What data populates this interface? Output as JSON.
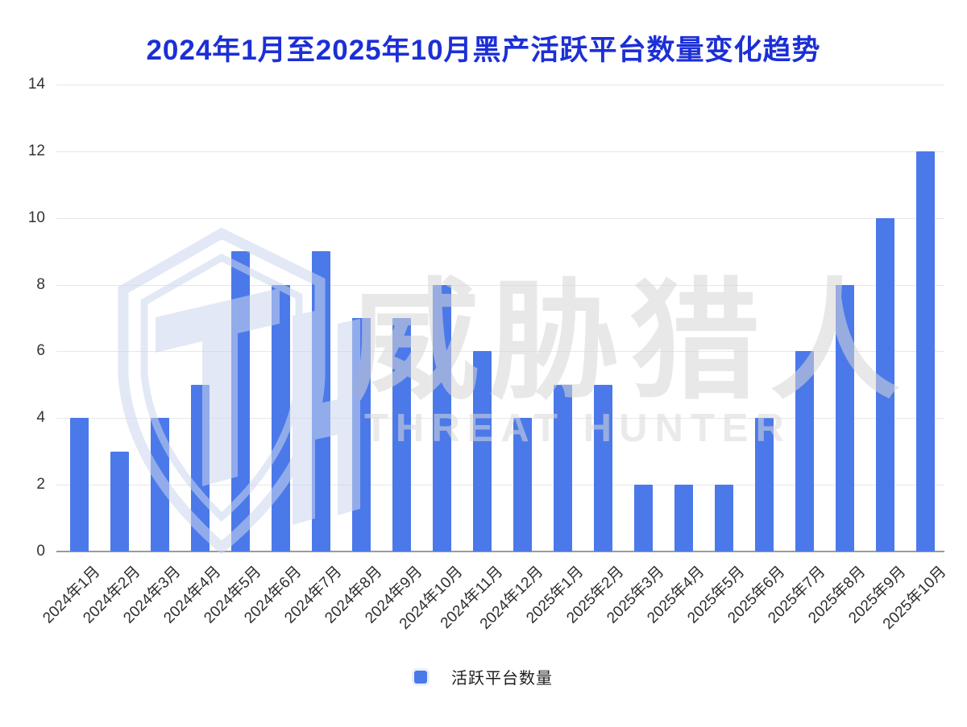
{
  "page": {
    "background": "#ffffff"
  },
  "header": {
    "title": "2024年1月至2025年10月黑产活跃平台数量变化趋势",
    "title_color": "#1c2fd6"
  },
  "watermark": {
    "logo_name": "threat-hunter-shield-logo",
    "text_cn": "威胁猎人",
    "text_en": "THREAT HUNTER"
  },
  "legend": {
    "label": "活跃平台数量",
    "swatch_color": "#4b79e9"
  },
  "chart_data": {
    "type": "bar",
    "title": "2024年1月至2025年10月黑产活跃平台数量变化趋势",
    "series_name": "活跃平台数量",
    "categories": [
      "2024年1月",
      "2024年2月",
      "2024年3月",
      "2024年4月",
      "2024年5月",
      "2024年6月",
      "2024年7月",
      "2024年8月",
      "2024年9月",
      "2024年10月",
      "2024年11月",
      "2024年12月",
      "2025年1月",
      "2025年2月",
      "2025年3月",
      "2025年4月",
      "2025年5月",
      "2025年6月",
      "2025年7月",
      "2025年8月",
      "2025年9月",
      "2025年10月"
    ],
    "values": [
      4,
      3,
      4,
      5,
      9,
      8,
      9,
      7,
      7,
      8,
      6,
      4,
      5,
      5,
      2,
      2,
      2,
      4,
      6,
      8,
      10,
      12
    ],
    "xlabel": "",
    "ylabel": "",
    "ylim": [
      0,
      14
    ],
    "yticks": [
      0,
      2,
      4,
      6,
      8,
      10,
      12,
      14
    ],
    "grid": true,
    "x_tick_rotation_deg": 45,
    "legend_position": "bottom",
    "bar_color": "#4b79e9",
    "gridline_color": "#e7e7e7",
    "baseline_color": "#9b9b9b"
  }
}
